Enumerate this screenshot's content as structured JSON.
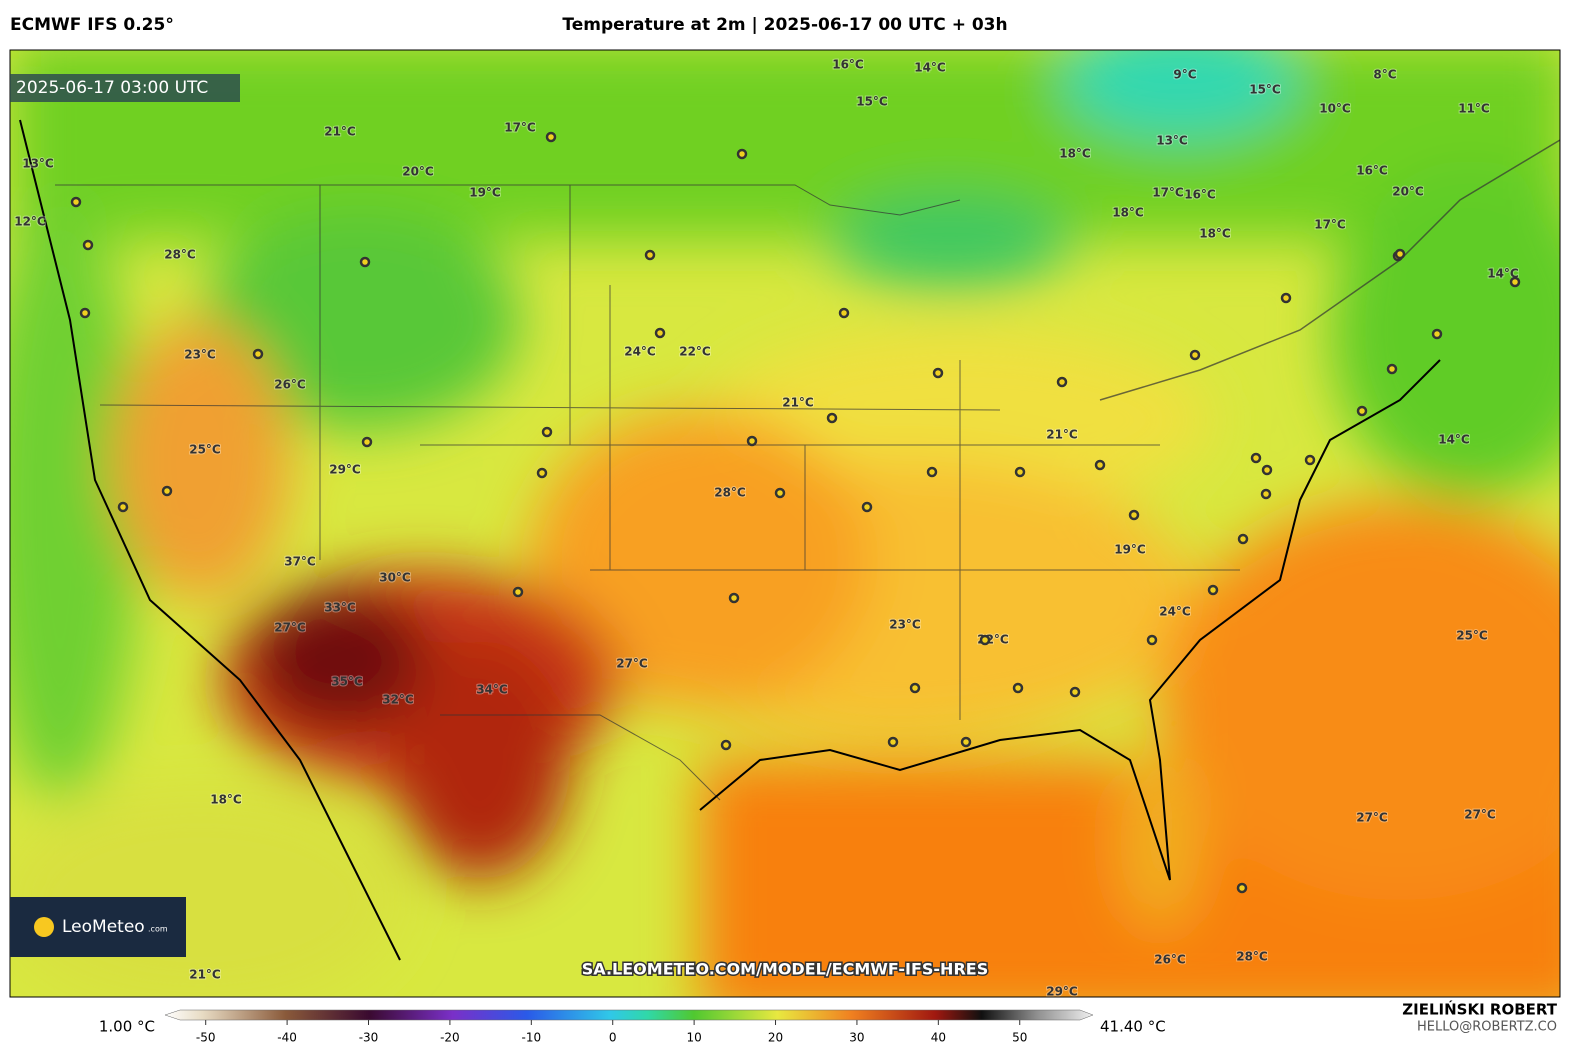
{
  "header": {
    "model": "ECMWF IFS 0.25°",
    "title": "Temperature at 2m | 2025-06-17 00 UTC + 03h"
  },
  "map": {
    "timestamp": "2025-06-17 03:00 UTC",
    "logo": "LeoMeteo",
    "logo_suffix": ".com",
    "url": "SA.LEOMETEO.COM/MODEL/ECMWF-IFS-HRES",
    "labels": [
      "16°C",
      "14°C",
      "15°C",
      "17°C",
      "13°C",
      "21°C",
      "20°C",
      "19°C",
      "18°C",
      "12°C",
      "23°C",
      "24°C",
      "22°C",
      "28°C",
      "25°C",
      "26°C",
      "29°C",
      "30°C",
      "27°C",
      "32°C",
      "35°C",
      "34°C",
      "37°C",
      "33°C",
      "21°C",
      "23°C",
      "22°C",
      "19°C",
      "24°C",
      "20°C",
      "25°C",
      "27°C",
      "27°C",
      "28°C",
      "29°C",
      "14°C",
      "16°C",
      "18°C",
      "17°C",
      "21°C",
      "28°C",
      "18°C",
      "15°C",
      "16°C",
      "13°C",
      "14°C",
      "17°C",
      "18°C",
      "11°C",
      "9°C",
      "8°C",
      "10°C",
      "27°C",
      "26°C",
      "21°C"
    ]
  },
  "legend": {
    "min_label": "1.00 °C",
    "max_label": "41.40 °C",
    "range": [
      -55,
      59
    ],
    "ticks": [
      -50,
      -40,
      -30,
      -20,
      -10,
      0,
      10,
      20,
      30,
      40,
      50
    ]
  },
  "footer": {
    "author": "ZIELIŃSKI ROBERT",
    "email": "HELLO@ROBERTZ.CO"
  }
}
